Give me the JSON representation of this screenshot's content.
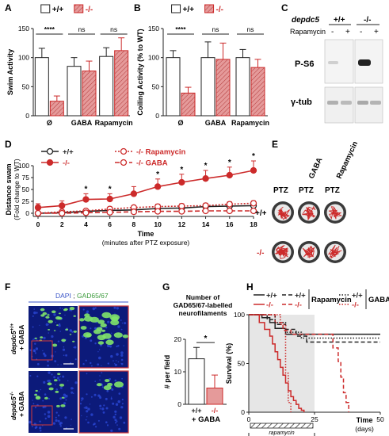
{
  "colors": {
    "wt": "#ffffff",
    "mut": "#e59a9a",
    "mut_line": "#cc2a2a",
    "hatch": "#b23a3a",
    "gray_bg": "#e6e6e6",
    "ink": "#222222"
  },
  "chart_data": [
    {
      "panel": "A",
      "type": "bar",
      "ylabel": "Swim Activity",
      "ylim": [
        0,
        150
      ],
      "yticks": [
        "0",
        "50",
        "100",
        "150"
      ],
      "categories": [
        "Ø",
        "GABA",
        "Rapamycin"
      ],
      "legend": [
        "+/+",
        "-/-"
      ],
      "series": [
        {
          "name": "+/+",
          "values": [
            100,
            85,
            102
          ],
          "err": [
            16,
            15,
            15
          ]
        },
        {
          "name": "-/-",
          "values": [
            25,
            77,
            112
          ],
          "err": [
            9,
            17,
            22
          ]
        }
      ],
      "sig": [
        "****",
        "ns",
        "ns"
      ]
    },
    {
      "panel": "B",
      "type": "bar",
      "ylabel": "Coiling Activity (% to WT)",
      "ylim": [
        0,
        150
      ],
      "yticks": [
        "0",
        "50",
        "100",
        "150"
      ],
      "categories": [
        "Ø",
        "GABA",
        "Rapamycin"
      ],
      "legend": [
        "+/+",
        "-/-"
      ],
      "series": [
        {
          "name": "+/+",
          "values": [
            100,
            100,
            100
          ],
          "err": [
            12,
            27,
            14
          ]
        },
        {
          "name": "-/-",
          "values": [
            39,
            97,
            83
          ],
          "err": [
            10,
            28,
            14
          ]
        }
      ],
      "sig": [
        "****",
        "ns",
        "ns"
      ]
    },
    {
      "panel": "D",
      "type": "line",
      "ylabel": "Distance swam",
      "ylabel2": "(Fold change to WT)",
      "xlabel": "Time",
      "xlabel2": "(minutes after PTZ exposure)",
      "xlim": [
        0,
        18
      ],
      "ylim": [
        0,
        100
      ],
      "x": [
        0,
        2,
        4,
        6,
        8,
        10,
        12,
        14,
        16,
        18
      ],
      "xticks": [
        "0",
        "2",
        "4",
        "6",
        "8",
        "10",
        "12",
        "14",
        "16",
        "18"
      ],
      "yticks": [
        "0",
        "25",
        "50",
        "75",
        "100"
      ],
      "series": [
        {
          "name": "+/+",
          "values": [
            0,
            1,
            4,
            6,
            7,
            10,
            11,
            14,
            15,
            16
          ],
          "err": [
            3,
            3,
            3,
            4,
            4,
            5,
            5,
            5,
            6,
            6
          ],
          "style": "wt"
        },
        {
          "name": "-/-",
          "values": [
            12,
            16,
            29,
            30,
            41,
            56,
            65,
            73,
            80,
            90
          ],
          "err": [
            8,
            10,
            12,
            11,
            15,
            16,
            17,
            17,
            17,
            20
          ],
          "style": "mut",
          "sig": [
            "",
            "",
            "*",
            "*",
            "",
            "*",
            "*",
            "*",
            "*",
            "*"
          ]
        },
        {
          "name": "-/- Rapamycin",
          "values": [
            0,
            3,
            5,
            9,
            12,
            14,
            15,
            16,
            19,
            21
          ],
          "err": [
            2,
            3,
            3,
            4,
            4,
            5,
            5,
            5,
            5,
            5
          ],
          "style": "rapa"
        },
        {
          "name": "-/- GABA",
          "values": [
            0,
            0,
            1,
            2,
            3,
            4,
            4,
            5,
            5,
            5
          ],
          "err": [
            1,
            1,
            2,
            2,
            2,
            2,
            2,
            2,
            2,
            2
          ],
          "style": "gaba"
        }
      ]
    },
    {
      "panel": "G",
      "type": "bar",
      "title_lines": [
        "Number of",
        "GAD65/67-labelled",
        "neurofilaments"
      ],
      "ylabel": "# per field",
      "ylim": [
        0,
        20
      ],
      "yticks": [
        "0",
        "10",
        "20"
      ],
      "categories": [
        "+/+",
        "-/-"
      ],
      "values": [
        14,
        5
      ],
      "err": [
        3.5,
        4
      ],
      "sig": "*",
      "xlabel": "+ GABA"
    },
    {
      "panel": "H",
      "type": "line",
      "ylabel": "Survival (%)",
      "xlabel": "Time",
      "xlabel2": "(days)",
      "xlim": [
        0,
        50
      ],
      "ylim": [
        0,
        100
      ],
      "xticks": [
        "0",
        "25",
        "50"
      ],
      "yticks": [
        "0",
        "50",
        "100"
      ],
      "shaded_until": 25,
      "bar_label": "rapamycin",
      "legend_rapa": "Rapamycin",
      "legend_gaba": "GABA",
      "series": [
        {
          "name": "+/+",
          "style": "solid",
          "color": "#222222",
          "steps": [
            [
              0,
              100
            ],
            [
              5,
              97
            ],
            [
              8,
              92
            ],
            [
              10,
              86
            ],
            [
              14,
              80
            ],
            [
              50,
              80
            ]
          ]
        },
        {
          "name": "-/-",
          "style": "solid",
          "color": "#cc2a2a",
          "steps": [
            [
              0,
              100
            ],
            [
              4,
              92
            ],
            [
              6,
              85
            ],
            [
              8,
              78
            ],
            [
              9,
              70
            ],
            [
              10,
              62
            ],
            [
              11,
              54
            ],
            [
              12,
              46
            ],
            [
              13,
              38
            ],
            [
              14,
              30
            ],
            [
              15,
              22
            ],
            [
              16,
              16
            ],
            [
              17,
              12
            ],
            [
              18,
              8
            ],
            [
              19,
              4
            ],
            [
              20,
              2
            ],
            [
              21,
              0
            ]
          ]
        },
        {
          "name": "+/+ Rapamycin",
          "style": "dashed",
          "color": "#222222",
          "steps": [
            [
              0,
              100
            ],
            [
              7,
              95
            ],
            [
              10,
              90
            ],
            [
              14,
              85
            ],
            [
              18,
              78
            ],
            [
              22,
              72
            ],
            [
              50,
              72
            ]
          ]
        },
        {
          "name": "-/- Rapamycin",
          "style": "dashed",
          "color": "#cc2a2a",
          "steps": [
            [
              0,
              100
            ],
            [
              10,
              92
            ],
            [
              13,
              84
            ],
            [
              16,
              80
            ],
            [
              30,
              80
            ],
            [
              32,
              66
            ],
            [
              34,
              52
            ],
            [
              35,
              36
            ],
            [
              36,
              20
            ],
            [
              37,
              10
            ],
            [
              38,
              0
            ]
          ]
        },
        {
          "name": "+/+ GABA",
          "style": "dotted",
          "color": "#222222",
          "steps": [
            [
              0,
              100
            ],
            [
              10,
              92
            ],
            [
              14,
              82
            ],
            [
              20,
              76
            ],
            [
              50,
              76
            ]
          ]
        },
        {
          "name": "-/- GABA",
          "style": "dotted",
          "color": "#cc2a2a",
          "steps": [
            [
              0,
              100
            ],
            [
              12,
              90
            ],
            [
              14,
              40
            ],
            [
              15,
              10
            ],
            [
              16,
              0
            ]
          ]
        }
      ]
    }
  ],
  "panels": {
    "A": "A",
    "B": "B",
    "C": "C",
    "D": "D",
    "E": "E",
    "F": "F",
    "G": "G",
    "H": "H"
  },
  "blot": {
    "gene": "depdc5",
    "genotypes": [
      "+/+",
      "-/-"
    ],
    "rapamycin_label": "Rapamycin",
    "signs": [
      "-",
      "+",
      "-",
      "+"
    ],
    "bands": [
      "P-S6",
      "γ-tub"
    ]
  },
  "wells": {
    "col_labels": [
      "PTZ",
      "PTZ",
      "PTZ"
    ],
    "col_headers": [
      "",
      "GABA",
      "Rapamycin"
    ],
    "row_labels": [
      "+/+",
      "-/-"
    ]
  },
  "micro": {
    "stain_dapi": "DAPI",
    "stain_sep": " ; ",
    "stain_gad": "GAD65/67",
    "row1_label": "depdc5",
    "row1_sup": "+/+",
    "row1_label2": "+ GABA",
    "row2_label": "depdc5",
    "row2_sup": "-/-",
    "row2_label2": "+ GABA"
  }
}
